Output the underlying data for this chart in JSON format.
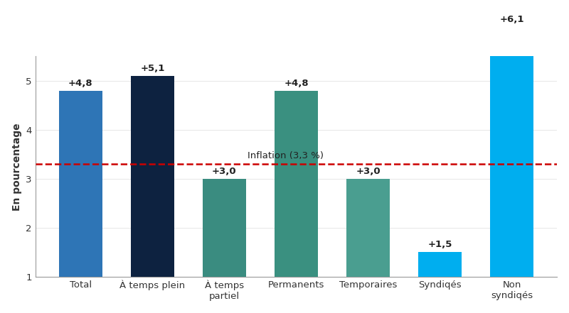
{
  "categories": [
    "Total",
    "À temps plein",
    "À temps\npartiel",
    "Permanents",
    "Temporaires",
    "Syndiqés",
    "Non\nsyndiqés"
  ],
  "values": [
    4.8,
    5.1,
    3.0,
    4.8,
    3.0,
    1.5,
    6.1
  ],
  "labels": [
    "+4,8",
    "+5,1",
    "+3,0",
    "+4,8",
    "+3,0",
    "+1,5",
    "+6,1"
  ],
  "bar_colors": [
    "#2e75b6",
    "#0d2240",
    "#3a8c80",
    "#3a9080",
    "#4a9e90",
    "#00aeef",
    "#00aeef"
  ],
  "ylabel": "En pourcentage",
  "ylim_min": 1,
  "ylim_max": 5.5,
  "yticks": [
    1,
    2,
    3,
    4,
    5
  ],
  "inflation_value": 3.3,
  "inflation_label": "Inflation (3,3 %)",
  "inflation_color": "#cc0000",
  "background_color": "#ffffff",
  "label_fontsize": 9.5,
  "ylabel_fontsize": 10,
  "tick_fontsize": 9.5
}
